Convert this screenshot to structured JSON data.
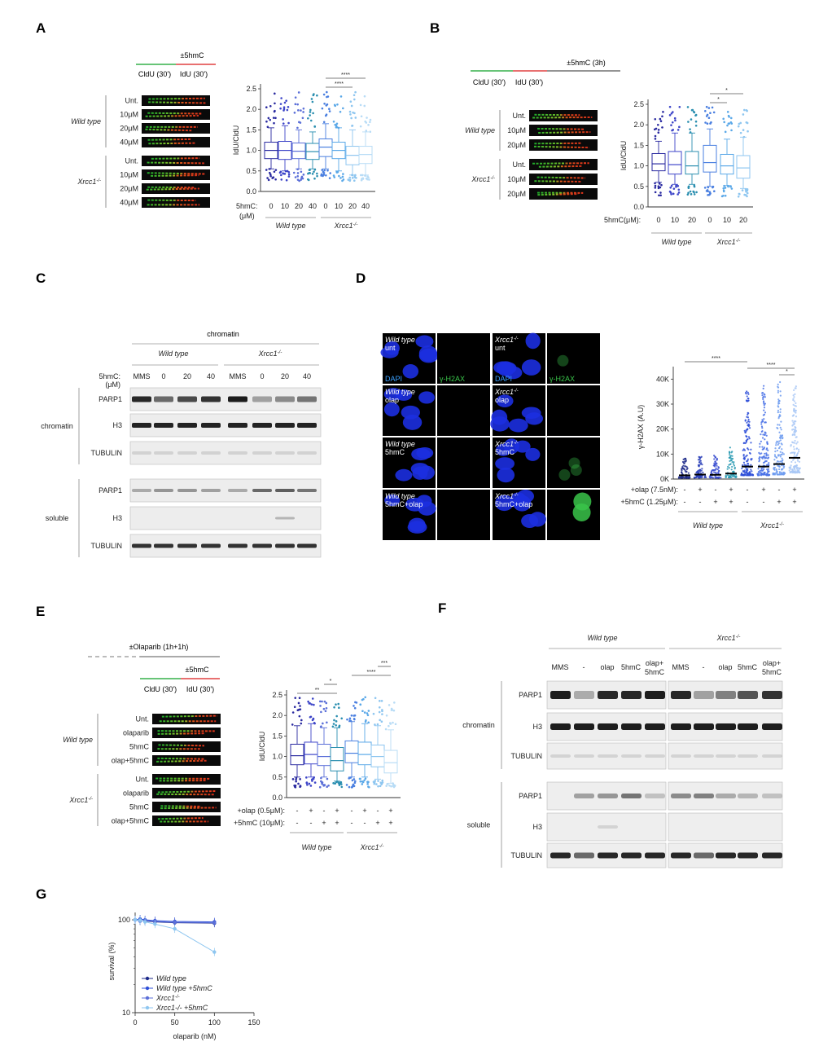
{
  "panels": {
    "A": {
      "letter": "A",
      "scheme": {
        "hmc": "±5hmC",
        "cldu": "CldU (30')",
        "idu": "IdU (30')"
      },
      "groups": [
        {
          "name": "Wild type",
          "rows": [
            "Unt.",
            "10μM",
            "20μM",
            "40μM"
          ]
        },
        {
          "name": "Xrcc1-/-",
          "rows": [
            "Unt.",
            "10μM",
            "20μM",
            "40μM"
          ]
        }
      ],
      "chart_data": {
        "type": "box",
        "ylabel": "IdU/CldU",
        "ylim": [
          0.0,
          2.5
        ],
        "yticks": [
          "0.0",
          "0.5",
          "1.0",
          "1.5",
          "2.0",
          "2.5"
        ],
        "row_label": "5hmC:",
        "row_label2": "(μM)",
        "categories": [
          "0",
          "10",
          "20",
          "40",
          "0",
          "10",
          "20",
          "40"
        ],
        "group_labels": [
          "Wild type",
          "Xrcc1-/-"
        ],
        "colors": [
          "#2a2aa0",
          "#3d45c8",
          "#5b6fd8",
          "#2b8fb0",
          "#4a7fe0",
          "#5aa8e8",
          "#8ec6f0",
          "#b8dcf6"
        ],
        "boxes": [
          {
            "q1": 0.8,
            "median": 1.0,
            "q3": 1.2,
            "wlo": 0.55,
            "whi": 1.55
          },
          {
            "q1": 0.78,
            "median": 1.0,
            "q3": 1.22,
            "wlo": 0.5,
            "whi": 1.6
          },
          {
            "q1": 0.8,
            "median": 0.98,
            "q3": 1.18,
            "wlo": 0.55,
            "whi": 1.5
          },
          {
            "q1": 0.78,
            "median": 0.97,
            "q3": 1.17,
            "wlo": 0.55,
            "whi": 1.45
          },
          {
            "q1": 0.85,
            "median": 1.08,
            "q3": 1.28,
            "wlo": 0.55,
            "whi": 1.65
          },
          {
            "q1": 0.8,
            "median": 1.0,
            "q3": 1.2,
            "wlo": 0.5,
            "whi": 1.55
          },
          {
            "q1": 0.65,
            "median": 0.88,
            "q3": 1.1,
            "wlo": 0.4,
            "whi": 1.5
          },
          {
            "q1": 0.68,
            "median": 0.9,
            "q3": 1.1,
            "wlo": 0.4,
            "whi": 1.45
          }
        ],
        "sig": [
          {
            "from": 4,
            "to": 6,
            "label": "****"
          },
          {
            "from": 4,
            "to": 7,
            "label": "****"
          }
        ]
      }
    },
    "B": {
      "letter": "B",
      "scheme": {
        "hmc": "±5hmC (3h)",
        "cldu": "CldU (30')",
        "idu": "IdU (30')"
      },
      "groups": [
        {
          "name": "Wild type",
          "rows": [
            "Unt.",
            "10μM",
            "20μM"
          ]
        },
        {
          "name": "Xrcc1-/-",
          "rows": [
            "Unt.",
            "10μM",
            "20μM"
          ]
        }
      ],
      "chart_data": {
        "type": "box",
        "ylabel": "IdU/CldU",
        "ylim": [
          0.0,
          2.5
        ],
        "yticks": [
          "0.0",
          "0.5",
          "1.0",
          "1.5",
          "2.0",
          "2.5"
        ],
        "row_label": "5hmC(μM):",
        "categories": [
          "0",
          "10",
          "20",
          "0",
          "10",
          "20"
        ],
        "group_labels": [
          "Wild type",
          "Xrcc1-/-"
        ],
        "colors": [
          "#2a2aa0",
          "#3d45c8",
          "#2b8fb0",
          "#4a7fe0",
          "#5aa8e8",
          "#8ec6f0"
        ],
        "boxes": [
          {
            "q1": 0.88,
            "median": 1.05,
            "q3": 1.3,
            "wlo": 0.6,
            "whi": 1.6
          },
          {
            "q1": 0.8,
            "median": 1.03,
            "q3": 1.35,
            "wlo": 0.55,
            "whi": 1.8
          },
          {
            "q1": 0.8,
            "median": 1.0,
            "q3": 1.35,
            "wlo": 0.55,
            "whi": 1.8
          },
          {
            "q1": 0.85,
            "median": 1.08,
            "q3": 1.5,
            "wlo": 0.5,
            "whi": 1.9
          },
          {
            "q1": 0.8,
            "median": 1.0,
            "q3": 1.28,
            "wlo": 0.52,
            "whi": 1.65
          },
          {
            "q1": 0.7,
            "median": 0.95,
            "q3": 1.25,
            "wlo": 0.45,
            "whi": 1.7
          }
        ],
        "sig": [
          {
            "from": 3,
            "to": 4,
            "label": "*"
          },
          {
            "from": 3,
            "to": 5,
            "label": "*"
          }
        ]
      }
    },
    "C": {
      "letter": "C",
      "header": "chromatin",
      "groups": [
        "Wild type",
        "Xrcc1-/-"
      ],
      "lane_label": "5hmC:",
      "lane_label2": "(μM)",
      "lanes": [
        "MMS",
        "0",
        "20",
        "40",
        "MMS",
        "0",
        "20",
        "40"
      ],
      "fractions": [
        {
          "name": "chromatin",
          "bands": [
            "PARP1",
            "H3",
            "TUBULIN"
          ]
        },
        {
          "name": "soluble",
          "bands": [
            "PARP1",
            "H3",
            "TUBULIN"
          ]
        }
      ]
    },
    "D": {
      "letter": "D",
      "cells": [
        [
          "Wild type",
          "unt",
          "Xrcc1-/-",
          "unt"
        ],
        [
          "Wild type",
          "olap",
          "Xrcc1-/-",
          "olap"
        ],
        [
          "Wild type",
          "5hmC",
          "Xrcc1-/-",
          "5hmC"
        ],
        [
          "Wild type",
          "5hmC+olap",
          "Xrcc1-/-",
          "5hmC+olap"
        ]
      ],
      "stain1": "DAPI",
      "stain2": "γ-H2AX",
      "chart_data": {
        "type": "scatter",
        "ylabel": "γ-H2AX (A.U)",
        "ylim": [
          0,
          45000
        ],
        "yticks": [
          "0K",
          "10K",
          "20K",
          "30K",
          "40K"
        ],
        "row1_label": "+olap (7.5nM):",
        "row1": [
          "-",
          "+",
          "-",
          "+",
          "-",
          "+",
          "-",
          "+"
        ],
        "row2_label": "+5hmC (1.25μM):",
        "row2": [
          "-",
          "-",
          "+",
          "+",
          "-",
          "-",
          "+",
          "+"
        ],
        "group_labels": [
          "Wild type",
          "Xrcc1-/-"
        ],
        "colors": [
          "#1d2a8a",
          "#2a3fb8",
          "#3a4ed0",
          "#2b9bb3",
          "#2e4fd8",
          "#4a72e6",
          "#6f9cf0",
          "#a9c8f6"
        ],
        "spreads": [
          {
            "median": 1500,
            "max": 8000
          },
          {
            "median": 1800,
            "max": 8500
          },
          {
            "median": 1700,
            "max": 9000
          },
          {
            "median": 2200,
            "max": 12000
          },
          {
            "median": 5000,
            "max": 34000
          },
          {
            "median": 5000,
            "max": 36000
          },
          {
            "median": 6000,
            "max": 38000
          },
          {
            "median": 8500,
            "max": 36000
          }
        ],
        "sig": [
          {
            "from": 0,
            "to": 4,
            "label": "****"
          },
          {
            "from": 4,
            "to": 7,
            "label": "****"
          },
          {
            "from": 6,
            "to": 7,
            "label": "*"
          }
        ]
      }
    },
    "E": {
      "letter": "E",
      "scheme": {
        "olap": "±Olaparib (1h+1h)",
        "hmc": "±5hmC",
        "cldu": "CldU (30')",
        "idu": "IdU (30')"
      },
      "groups": [
        {
          "name": "Wild type",
          "rows": [
            "Unt.",
            "olaparib",
            "5hmC",
            "olap+5hmC"
          ]
        },
        {
          "name": "Xrcc1-/-",
          "rows": [
            "Unt.",
            "olaparib",
            "5hmC",
            "olap+5hmC"
          ]
        }
      ],
      "chart_data": {
        "type": "box",
        "ylabel": "IdU/CldU",
        "ylim": [
          0.0,
          2.5
        ],
        "yticks": [
          "0.0",
          "0.5",
          "1.0",
          "1.5",
          "2.0",
          "2.5"
        ],
        "row1_label": "+olap (0.5μM):",
        "row1": [
          "-",
          "+",
          "-",
          "+",
          "-",
          "+",
          "-",
          "+"
        ],
        "row2_label": "+5hmC (10μM):",
        "row2": [
          "-",
          "-",
          "+",
          "+",
          "-",
          "-",
          "+",
          "+"
        ],
        "group_labels": [
          "Wild type",
          "Xrcc1-/-"
        ],
        "colors": [
          "#2a2aa0",
          "#3d45c8",
          "#5b6fd8",
          "#2b8fb0",
          "#4a7fe0",
          "#5aa8e8",
          "#8ec6f0",
          "#b8dcf6"
        ],
        "boxes": [
          {
            "q1": 0.8,
            "median": 1.02,
            "q3": 1.3,
            "wlo": 0.5,
            "whi": 1.75
          },
          {
            "q1": 0.82,
            "median": 1.05,
            "q3": 1.35,
            "wlo": 0.5,
            "whi": 1.8
          },
          {
            "q1": 0.78,
            "median": 1.0,
            "q3": 1.3,
            "wlo": 0.5,
            "whi": 1.7
          },
          {
            "q1": 0.65,
            "median": 0.9,
            "q3": 1.22,
            "wlo": 0.4,
            "whi": 1.7
          },
          {
            "q1": 0.85,
            "median": 1.08,
            "q3": 1.38,
            "wlo": 0.5,
            "whi": 1.85
          },
          {
            "q1": 0.8,
            "median": 1.05,
            "q3": 1.35,
            "wlo": 0.5,
            "whi": 1.8
          },
          {
            "q1": 0.75,
            "median": 1.0,
            "q3": 1.28,
            "wlo": 0.45,
            "whi": 1.75
          },
          {
            "q1": 0.6,
            "median": 0.85,
            "q3": 1.15,
            "wlo": 0.35,
            "whi": 1.65
          }
        ],
        "sig": [
          {
            "from": 0,
            "to": 3,
            "label": "**"
          },
          {
            "from": 2,
            "to": 3,
            "label": "*"
          },
          {
            "from": 4,
            "to": 7,
            "label": "****"
          },
          {
            "from": 6,
            "to": 7,
            "label": "***"
          }
        ]
      }
    },
    "F": {
      "letter": "F",
      "groups": [
        "Wild type",
        "Xrcc1-/-"
      ],
      "lanes": [
        "MMS",
        "-",
        "olap",
        "5hmC",
        "olap+\n5hmC",
        "MMS",
        "-",
        "olap",
        "5hmC",
        "olap+\n5hmC"
      ],
      "fractions": [
        {
          "name": "chromatin",
          "bands": [
            "PARP1",
            "H3",
            "TUBULIN"
          ]
        },
        {
          "name": "soluble",
          "bands": [
            "PARP1",
            "H3",
            "TUBULIN"
          ]
        }
      ]
    },
    "G": {
      "letter": "G",
      "chart_data": {
        "type": "line",
        "ylabel": "survival (%)",
        "xlabel": "olaparib (nM)",
        "yscale": "log",
        "ylim": [
          10,
          120
        ],
        "yticks": [
          "10",
          "100"
        ],
        "xlim": [
          0,
          150
        ],
        "xticks": [
          "0",
          "50",
          "100",
          "150"
        ],
        "x": [
          0,
          6.25,
          12.5,
          25,
          50,
          100
        ],
        "series": [
          {
            "name": "Wild type",
            "color": "#1d2a8a",
            "values": [
              100,
              98,
              97,
              95,
              93,
              92
            ]
          },
          {
            "name": "Wild type +5hmC",
            "color": "#2e4fd8",
            "values": [
              100,
              102,
              100,
              98,
              96,
              95
            ]
          },
          {
            "name": "Xrcc1-/-",
            "color": "#5b6fd8",
            "values": [
              100,
              97,
              98,
              96,
              94,
              93
            ]
          },
          {
            "name": "Xrcc1-/- +5hmC",
            "color": "#8ec6f0",
            "values": [
              100,
              99,
              95,
              90,
              80,
              45
            ]
          }
        ]
      }
    }
  }
}
